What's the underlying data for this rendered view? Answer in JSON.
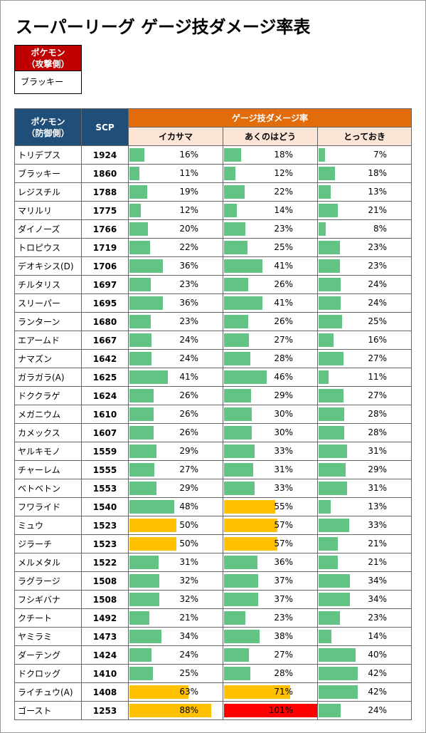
{
  "title": "スーパーリーグ ゲージ技ダメージ率表",
  "attacker": {
    "header": [
      "ポケモン",
      "（攻撃側）"
    ],
    "value": "ブラッキー"
  },
  "table": {
    "columns": {
      "pokemon": [
        "ポケモン",
        "（防御側）"
      ],
      "scp": "SCP",
      "group": "ゲージ技ダメージ率",
      "moves": [
        "イカサマ",
        "あくのはどう",
        "とっておき"
      ]
    },
    "rows": [
      {
        "name": "トリデプス",
        "scp": 1924,
        "values": [
          16,
          18,
          7
        ],
        "value_labels": [
          "16%",
          "18%",
          "7%"
        ]
      },
      {
        "name": "ブラッキー",
        "scp": 1860,
        "values": [
          11,
          12,
          18
        ],
        "value_labels": [
          "11%",
          "12%",
          "18%"
        ]
      },
      {
        "name": "レジスチル",
        "scp": 1788,
        "values": [
          19,
          22,
          13
        ],
        "value_labels": [
          "19%",
          "22%",
          "13%"
        ]
      },
      {
        "name": "マリルリ",
        "scp": 1775,
        "values": [
          12,
          14,
          21
        ],
        "value_labels": [
          "12%",
          "14%",
          "21%"
        ]
      },
      {
        "name": "ダイノーズ",
        "scp": 1766,
        "values": [
          20,
          23,
          8
        ],
        "value_labels": [
          "20%",
          "23%",
          "8%"
        ]
      },
      {
        "name": "トロピウス",
        "scp": 1719,
        "values": [
          22,
          25,
          23
        ],
        "value_labels": [
          "22%",
          "25%",
          "23%"
        ]
      },
      {
        "name": "デオキシス(D)",
        "scp": 1706,
        "values": [
          36,
          41,
          23
        ],
        "value_labels": [
          "36%",
          "41%",
          "23%"
        ]
      },
      {
        "name": "チルタリス",
        "scp": 1697,
        "values": [
          23,
          26,
          24
        ],
        "value_labels": [
          "23%",
          "26%",
          "24%"
        ]
      },
      {
        "name": "スリーパー",
        "scp": 1695,
        "values": [
          36,
          41,
          24
        ],
        "value_labels": [
          "36%",
          "41%",
          "24%"
        ]
      },
      {
        "name": "ランターン",
        "scp": 1680,
        "values": [
          23,
          26,
          25
        ],
        "value_labels": [
          "23%",
          "26%",
          "25%"
        ]
      },
      {
        "name": "エアームド",
        "scp": 1667,
        "values": [
          24,
          27,
          16
        ],
        "value_labels": [
          "24%",
          "27%",
          "16%"
        ]
      },
      {
        "name": "ナマズン",
        "scp": 1642,
        "values": [
          24,
          28,
          27
        ],
        "value_labels": [
          "24%",
          "28%",
          "27%"
        ]
      },
      {
        "name": "ガラガラ(A)",
        "scp": 1625,
        "values": [
          41,
          46,
          11
        ],
        "value_labels": [
          "41%",
          "46%",
          "11%"
        ]
      },
      {
        "name": "ドククラゲ",
        "scp": 1624,
        "values": [
          26,
          29,
          27
        ],
        "value_labels": [
          "26%",
          "29%",
          "27%"
        ]
      },
      {
        "name": "メガニウム",
        "scp": 1610,
        "values": [
          26,
          30,
          28
        ],
        "value_labels": [
          "26%",
          "30%",
          "28%"
        ]
      },
      {
        "name": "カメックス",
        "scp": 1607,
        "values": [
          26,
          30,
          28
        ],
        "value_labels": [
          "26%",
          "30%",
          "28%"
        ]
      },
      {
        "name": "ヤルキモノ",
        "scp": 1559,
        "values": [
          29,
          33,
          31
        ],
        "value_labels": [
          "29%",
          "33%",
          "31%"
        ]
      },
      {
        "name": "チャーレム",
        "scp": 1555,
        "values": [
          27,
          31,
          29
        ],
        "value_labels": [
          "27%",
          "31%",
          "29%"
        ]
      },
      {
        "name": "ベトベトン",
        "scp": 1553,
        "values": [
          29,
          33,
          31
        ],
        "value_labels": [
          "29%",
          "33%",
          "31%"
        ]
      },
      {
        "name": "フワライド",
        "scp": 1540,
        "values": [
          48,
          55,
          13
        ],
        "value_labels": [
          "48%",
          "55%",
          "13%"
        ]
      },
      {
        "name": "ミュウ",
        "scp": 1523,
        "values": [
          50,
          57,
          33
        ],
        "value_labels": [
          "50%",
          "57%",
          "33%"
        ]
      },
      {
        "name": "ジラーチ",
        "scp": 1523,
        "values": [
          50,
          57,
          21
        ],
        "value_labels": [
          "50%",
          "57%",
          "21%"
        ]
      },
      {
        "name": "メルメタル",
        "scp": 1522,
        "values": [
          31,
          36,
          21
        ],
        "value_labels": [
          "31%",
          "36%",
          "21%"
        ]
      },
      {
        "name": "ラグラージ",
        "scp": 1508,
        "values": [
          32,
          37,
          34
        ],
        "value_labels": [
          "32%",
          "37%",
          "34%"
        ]
      },
      {
        "name": "フシギバナ",
        "scp": 1508,
        "values": [
          32,
          37,
          34
        ],
        "value_labels": [
          "32%",
          "37%",
          "34%"
        ]
      },
      {
        "name": "クチート",
        "scp": 1492,
        "values": [
          21,
          23,
          23
        ],
        "value_labels": [
          "21%",
          "23%",
          "23%"
        ]
      },
      {
        "name": "ヤミラミ",
        "scp": 1473,
        "values": [
          34,
          38,
          14
        ],
        "value_labels": [
          "34%",
          "38%",
          "14%"
        ]
      },
      {
        "name": "ダーテング",
        "scp": 1424,
        "values": [
          24,
          27,
          40
        ],
        "value_labels": [
          "24%",
          "27%",
          "40%"
        ]
      },
      {
        "name": "ドクロッグ",
        "scp": 1410,
        "values": [
          25,
          28,
          42
        ],
        "value_labels": [
          "25%",
          "28%",
          "42%"
        ]
      },
      {
        "name": "ライチュウ(A)",
        "scp": 1408,
        "values": [
          63,
          71,
          42
        ],
        "value_labels": [
          "63%",
          "71%",
          "42%"
        ]
      },
      {
        "name": "ゴースト",
        "scp": 1253,
        "values": [
          88,
          101,
          24
        ],
        "value_labels": [
          "88%",
          "101%",
          "24%"
        ]
      }
    ]
  }
}
